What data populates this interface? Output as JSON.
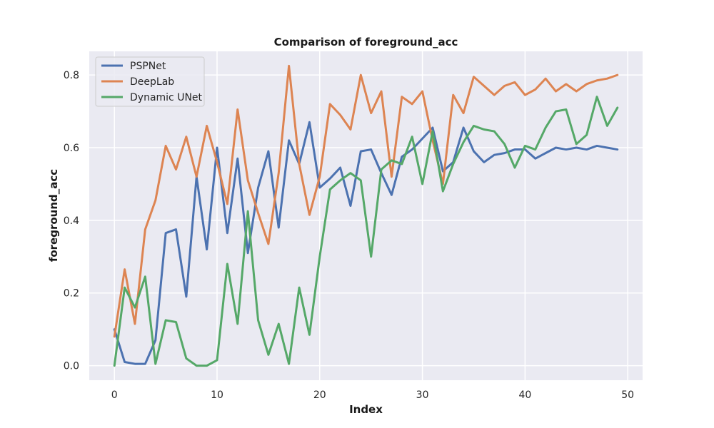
{
  "chart_data": {
    "type": "line",
    "title": "Comparison of foreground_acc",
    "xlabel": "Index",
    "ylabel": "foreground_acc",
    "xlim": [
      -2.45,
      51.45
    ],
    "ylim": [
      -0.04,
      0.865
    ],
    "xticks": [
      0,
      10,
      20,
      30,
      40,
      50
    ],
    "yticks": [
      0.0,
      0.2,
      0.4,
      0.6,
      0.8
    ],
    "xtick_labels": [
      "0",
      "10",
      "20",
      "30",
      "40",
      "50"
    ],
    "ytick_labels": [
      "0.0",
      "0.2",
      "0.4",
      "0.6",
      "0.8"
    ],
    "grid": true,
    "legend_position": "top-left",
    "x": [
      0,
      1,
      2,
      3,
      4,
      5,
      6,
      7,
      8,
      9,
      10,
      11,
      12,
      13,
      14,
      15,
      16,
      17,
      18,
      19,
      20,
      21,
      22,
      23,
      24,
      25,
      26,
      27,
      28,
      29,
      30,
      31,
      32,
      33,
      34,
      35,
      36,
      37,
      38,
      39,
      40,
      41,
      42,
      43,
      44,
      45,
      46,
      47,
      48,
      49
    ],
    "series": [
      {
        "name": "PSPNet",
        "color": "#4c72b0",
        "values": [
          0.1,
          0.01,
          0.005,
          0.005,
          0.07,
          0.365,
          0.375,
          0.19,
          0.52,
          0.32,
          0.6,
          0.365,
          0.57,
          0.31,
          0.49,
          0.59,
          0.38,
          0.62,
          0.555,
          0.67,
          0.49,
          0.515,
          0.545,
          0.44,
          0.59,
          0.595,
          0.53,
          0.47,
          0.575,
          0.595,
          0.625,
          0.655,
          0.535,
          0.56,
          0.655,
          0.59,
          0.56,
          0.58,
          0.585,
          0.595,
          0.595,
          0.57,
          0.585,
          0.6,
          0.595,
          0.6,
          0.595,
          0.605,
          0.6,
          0.595
        ]
      },
      {
        "name": "DeepLab",
        "color": "#dd8452",
        "values": [
          0.08,
          0.265,
          0.115,
          0.375,
          0.455,
          0.605,
          0.54,
          0.63,
          0.52,
          0.66,
          0.56,
          0.445,
          0.705,
          0.51,
          0.42,
          0.335,
          0.53,
          0.825,
          0.555,
          0.415,
          0.52,
          0.72,
          0.69,
          0.65,
          0.8,
          0.695,
          0.755,
          0.52,
          0.74,
          0.72,
          0.755,
          0.62,
          0.5,
          0.745,
          0.695,
          0.795,
          0.77,
          0.745,
          0.77,
          0.78,
          0.745,
          0.76,
          0.79,
          0.755,
          0.775,
          0.755,
          0.775,
          0.785,
          0.79,
          0.8
        ]
      },
      {
        "name": "Dynamic UNet",
        "color": "#55a868",
        "values": [
          0.0,
          0.215,
          0.16,
          0.245,
          0.005,
          0.125,
          0.12,
          0.02,
          0.0,
          0.0,
          0.015,
          0.28,
          0.115,
          0.425,
          0.125,
          0.03,
          0.115,
          0.005,
          0.215,
          0.085,
          0.3,
          0.485,
          0.51,
          0.53,
          0.51,
          0.3,
          0.54,
          0.565,
          0.555,
          0.63,
          0.5,
          0.645,
          0.48,
          0.555,
          0.615,
          0.66,
          0.65,
          0.645,
          0.61,
          0.545,
          0.605,
          0.595,
          0.655,
          0.7,
          0.705,
          0.61,
          0.635,
          0.74,
          0.66,
          0.71
        ]
      }
    ]
  }
}
